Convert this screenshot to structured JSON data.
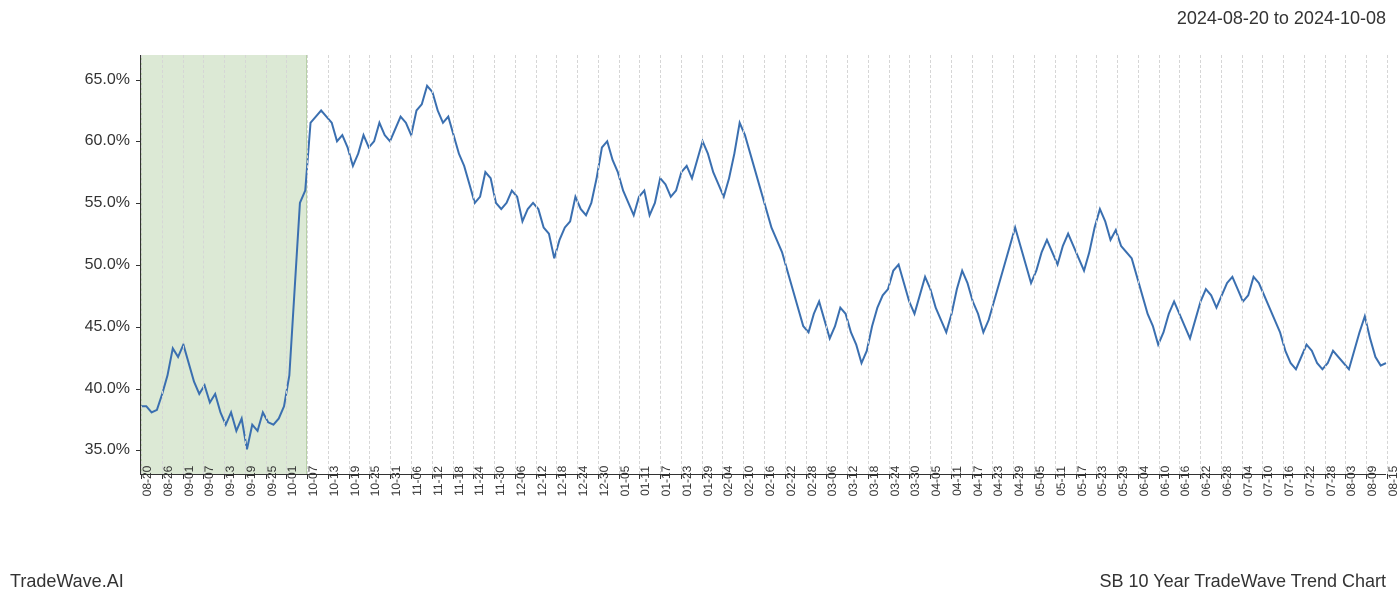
{
  "header": {
    "date_range": "2024-08-20 to 2024-10-08"
  },
  "footer": {
    "left": "TradeWave.AI",
    "right": "SB 10 Year TradeWave Trend Chart"
  },
  "chart": {
    "type": "line",
    "background_color": "#ffffff",
    "grid_color": "#d6d6d6",
    "grid_style": "dashed",
    "axis_color": "#333333",
    "line_color": "#3a6fb0",
    "line_width": 2,
    "highlight_band": {
      "color": "#dce9d5",
      "border_color": "#b8d1a8",
      "x_start": "08-20",
      "x_end": "10-07"
    },
    "ylim": [
      33,
      67
    ],
    "y_ticks": [
      35.0,
      40.0,
      45.0,
      50.0,
      55.0,
      60.0,
      65.0
    ],
    "y_tick_labels": [
      "35.0%",
      "40.0%",
      "45.0%",
      "50.0%",
      "55.0%",
      "60.0%",
      "65.0%"
    ],
    "y_tick_fontsize": 16,
    "x_tick_labels": [
      "08-20",
      "08-26",
      "09-01",
      "09-07",
      "09-13",
      "09-19",
      "09-25",
      "10-01",
      "10-07",
      "10-13",
      "10-19",
      "10-25",
      "10-31",
      "11-06",
      "11-12",
      "11-18",
      "11-24",
      "11-30",
      "12-06",
      "12-12",
      "12-18",
      "12-24",
      "12-30",
      "01-05",
      "01-11",
      "01-17",
      "01-23",
      "01-29",
      "02-04",
      "02-10",
      "02-16",
      "02-22",
      "02-28",
      "03-06",
      "03-12",
      "03-18",
      "03-24",
      "03-30",
      "04-05",
      "04-11",
      "04-17",
      "04-23",
      "04-29",
      "05-05",
      "05-11",
      "05-17",
      "05-23",
      "05-29",
      "06-04",
      "06-10",
      "06-16",
      "06-22",
      "06-28",
      "07-04",
      "07-10",
      "07-16",
      "07-22",
      "07-28",
      "08-03",
      "08-09",
      "08-15"
    ],
    "x_tick_fontsize": 12,
    "x_tick_rotation": -90,
    "series": {
      "values": [
        38.5,
        38.5,
        38.0,
        38.2,
        39.5,
        41.0,
        43.2,
        42.5,
        43.5,
        42.0,
        40.5,
        39.5,
        40.2,
        38.8,
        39.5,
        38.0,
        37.0,
        38.0,
        36.5,
        37.5,
        35.0,
        37.0,
        36.5,
        38.0,
        37.2,
        37.0,
        37.5,
        38.5,
        41.0,
        48.0,
        55.0,
        56.0,
        61.5,
        62.0,
        62.5,
        62.0,
        61.5,
        60.0,
        60.5,
        59.5,
        58.0,
        59.0,
        60.5,
        59.5,
        60.0,
        61.5,
        60.5,
        60.0,
        61.0,
        62.0,
        61.5,
        60.5,
        62.5,
        63.0,
        64.5,
        64.0,
        62.5,
        61.5,
        62.0,
        60.5,
        59.0,
        58.0,
        56.5,
        55.0,
        55.5,
        57.5,
        57.0,
        55.0,
        54.5,
        55.0,
        56.0,
        55.5,
        53.5,
        54.5,
        55.0,
        54.5,
        53.0,
        52.5,
        50.5,
        52.0,
        53.0,
        53.5,
        55.5,
        54.5,
        54.0,
        55.0,
        57.0,
        59.5,
        60.0,
        58.5,
        57.5,
        56.0,
        55.0,
        54.0,
        55.5,
        56.0,
        54.0,
        55.0,
        57.0,
        56.5,
        55.5,
        56.0,
        57.5,
        58.0,
        57.0,
        58.5,
        60.0,
        59.0,
        57.5,
        56.5,
        55.5,
        57.0,
        59.0,
        61.5,
        60.5,
        59.0,
        57.5,
        56.0,
        54.5,
        53.0,
        52.0,
        51.0,
        49.5,
        48.0,
        46.5,
        45.0,
        44.5,
        46.0,
        47.0,
        45.5,
        44.0,
        45.0,
        46.5,
        46.0,
        44.5,
        43.5,
        42.0,
        43.0,
        45.0,
        46.5,
        47.5,
        48.0,
        49.5,
        50.0,
        48.5,
        47.0,
        46.0,
        47.5,
        49.0,
        48.0,
        46.5,
        45.5,
        44.5,
        46.0,
        48.0,
        49.5,
        48.5,
        47.0,
        46.0,
        44.5,
        45.5,
        47.0,
        48.5,
        50.0,
        51.5,
        53.0,
        51.5,
        50.0,
        48.5,
        49.5,
        51.0,
        52.0,
        51.0,
        50.0,
        51.5,
        52.5,
        51.5,
        50.5,
        49.5,
        51.0,
        53.0,
        54.5,
        53.5,
        52.0,
        52.8,
        51.5,
        51.0,
        50.5,
        49.0,
        47.5,
        46.0,
        45.0,
        43.5,
        44.5,
        46.0,
        47.0,
        46.0,
        45.0,
        44.0,
        45.5,
        47.0,
        48.0,
        47.5,
        46.5,
        47.5,
        48.5,
        49.0,
        48.0,
        47.0,
        47.5,
        49.0,
        48.5,
        47.5,
        46.5,
        45.5,
        44.5,
        43.0,
        42.0,
        41.5,
        42.5,
        43.5,
        43.0,
        42.0,
        41.5,
        42.0,
        43.0,
        42.5,
        42.0,
        41.5,
        43.0,
        44.5,
        45.8,
        44.0,
        42.5,
        41.8,
        42.0
      ]
    }
  }
}
